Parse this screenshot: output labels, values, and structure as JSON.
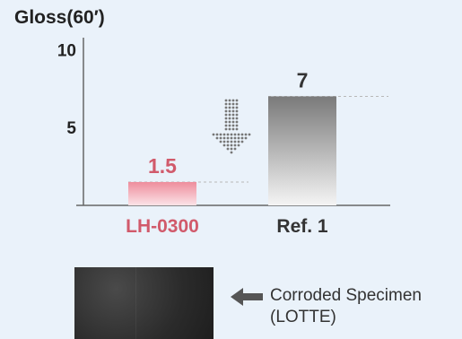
{
  "chart_data": {
    "type": "bar",
    "title": "Gloss(60′)",
    "categories": [
      "LH-0300",
      "Ref. 1"
    ],
    "values": [
      1.5,
      7
    ],
    "data_labels": [
      "1.5",
      "7"
    ],
    "yticks": [
      "10",
      "5"
    ],
    "ytick_values": [
      10,
      5
    ],
    "ylim": [
      0,
      11
    ],
    "grid": false,
    "colors": {
      "LH-0300": "#f0a8b3",
      "Ref. 1": "#8c8c8c",
      "label_LH-0300": "#d15a6b",
      "label_Ref. 1": "#333333"
    }
  },
  "annotation": {
    "line1": "Corroded Specimen",
    "line2": "(LOTTE)"
  }
}
